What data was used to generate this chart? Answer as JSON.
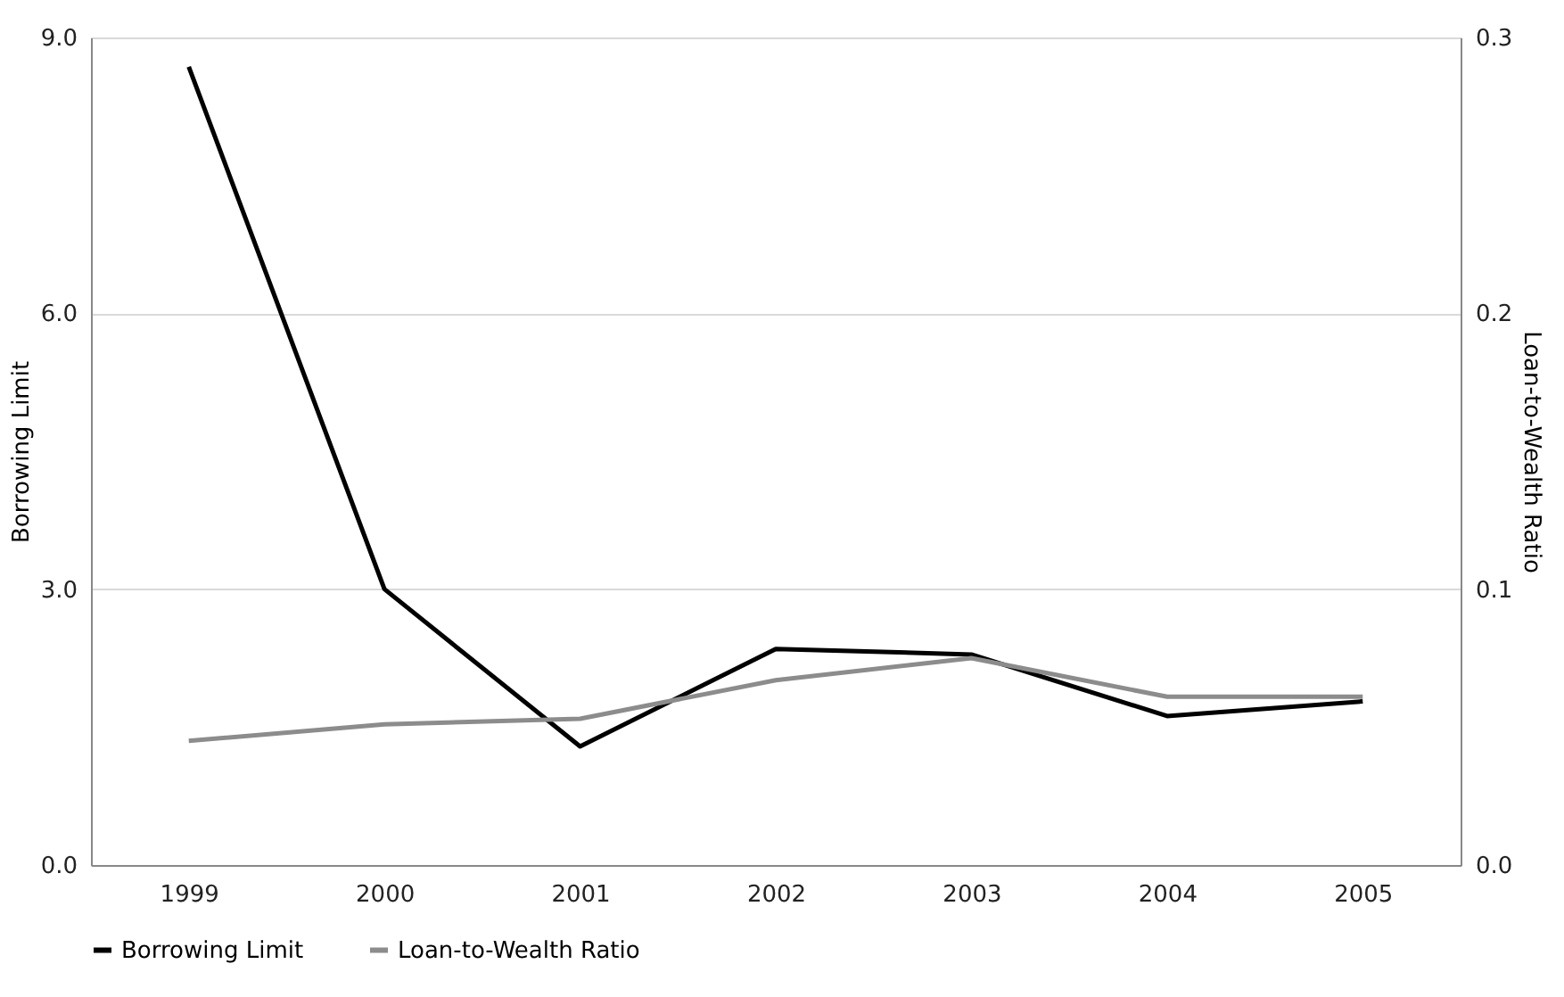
{
  "chart_data": {
    "type": "line",
    "ylabel": "Borrowing Limit",
    "y2label": "Loan-to-Wealth Ratio",
    "categories": [
      "1999",
      "2000",
      "2001",
      "2002",
      "2003",
      "2004",
      "2005"
    ],
    "series": [
      {
        "name": "Borrowing Limit",
        "color": "#000000",
        "values": [
          8.68,
          3.0,
          1.29,
          2.35,
          2.29,
          1.62,
          1.78
        ]
      },
      {
        "name": "Loan-to-Wealth Ratio",
        "color": "#8c8c8c",
        "axis": "y2",
        "values": [
          0.045,
          0.051,
          0.053,
          0.067,
          0.075,
          0.061,
          0.061
        ]
      }
    ],
    "ylim": [
      0,
      9
    ],
    "yticks": [
      {
        "value": 0,
        "label": "0.0"
      },
      {
        "value": 3,
        "label": "3.0"
      },
      {
        "value": 6,
        "label": "6.0"
      },
      {
        "value": 9,
        "label": "9.0"
      }
    ],
    "y2lim": [
      0,
      0.3
    ],
    "y2ticks": [
      {
        "value": 0,
        "label": "0.0"
      },
      {
        "value": 0.1,
        "label": "0.1"
      },
      {
        "value": 0.2,
        "label": "0.2"
      },
      {
        "value": 0.3,
        "label": "0.3"
      }
    ],
    "grid": "y",
    "legend": "bottom",
    "line_style": "solid",
    "marker": "none"
  }
}
